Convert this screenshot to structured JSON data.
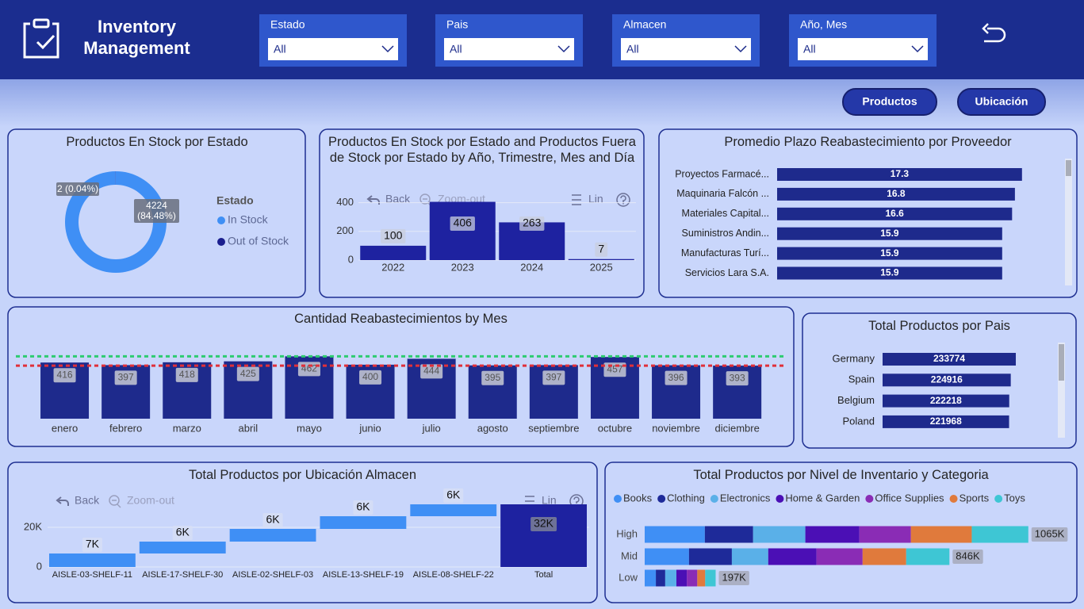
{
  "header": {
    "title": "Inventory Management"
  },
  "filters": [
    {
      "label": "Estado",
      "value": "All"
    },
    {
      "label": "Pais",
      "value": "All"
    },
    {
      "label": "Almacen",
      "value": "All"
    },
    {
      "label": "Año, Mes",
      "value": "All"
    }
  ],
  "buttons": [
    "Productos",
    "Ubicación"
  ],
  "chart_data": [
    {
      "type": "donut",
      "title": "Productos En Stock por Estado",
      "legend_title": "Estado",
      "categories": [
        "In Stock",
        "Out of Stock"
      ],
      "values": [
        4224,
        2
      ],
      "value_labels": [
        "4224 (84.48%)",
        "2 (0.04%)"
      ],
      "colors": [
        "#3f8ff5",
        "#1b1f8f"
      ]
    },
    {
      "type": "bar",
      "title": "Productos En Stock por Estado and Productos Fuera de Stock por Estado by Año, Trimestre, Mes and Día",
      "toolbar": [
        "Back",
        "Zoom-out",
        "Lin"
      ],
      "categories": [
        "2022",
        "2023",
        "2024",
        "2025"
      ],
      "values": [
        100,
        406,
        263,
        7
      ],
      "color": "#1e22a0",
      "ylim": [
        0,
        420
      ],
      "yticks": [
        0,
        200,
        400
      ],
      "grid": true
    },
    {
      "type": "hbar",
      "title": "Promedio Plazo Reabastecimiento por Proveedor",
      "categories": [
        "Proyectos Farmacé...",
        "Maquinaria Falcón ...",
        "Materiales Capital...",
        "Suministros Andin...",
        "Manufacturas Turí...",
        "Servicios Lara S.A."
      ],
      "values": [
        17.3,
        16.8,
        16.6,
        15.9,
        15.9,
        15.9
      ],
      "color": "#1e2a8c",
      "xlim": [
        0,
        20
      ]
    },
    {
      "type": "bar",
      "title": "Cantidad Reabastecimientos by Mes",
      "categories": [
        "enero",
        "febrero",
        "marzo",
        "abril",
        "mayo",
        "junio",
        "julio",
        "agosto",
        "septiembre",
        "octubre",
        "noviembre",
        "diciembre"
      ],
      "values": [
        416,
        397,
        418,
        425,
        462,
        400,
        444,
        395,
        397,
        457,
        396,
        393
      ],
      "color": "#1e2a8c",
      "ylim": [
        0,
        470
      ],
      "reference_lines": [
        {
          "value": 462,
          "color": "#2ecc71"
        },
        {
          "value": 393,
          "color": "#e0303a"
        }
      ]
    },
    {
      "type": "hbar",
      "title": "Total Productos por Pais",
      "categories": [
        "Germany",
        "Spain",
        "Belgium",
        "Poland"
      ],
      "values": [
        233774,
        224916,
        222218,
        221968
      ],
      "color": "#1e2a8c",
      "xlim": [
        0,
        300000
      ]
    },
    {
      "type": "waterfall",
      "title": "Total Productos por Ubicación Almacen",
      "toolbar": [
        "Back",
        "Zoom-out",
        "Lin"
      ],
      "categories": [
        "AISLE-03-SHELF-11",
        "AISLE-17-SHELF-30",
        "AISLE-02-SHELF-03",
        "AISLE-13-SHELF-19",
        "AISLE-08-SHELF-22"
      ],
      "values": [
        6800,
        6000,
        6400,
        6400,
        6000
      ],
      "value_labels": [
        "7K",
        "6K",
        "6K",
        "6K",
        "6K"
      ],
      "total_category": "Total",
      "total": 31600,
      "total_label": "32K",
      "color": "#3f8ff5",
      "total_color": "#1e22a0",
      "ylim": [
        0,
        34000
      ],
      "yticks": [
        0,
        {
          "value": 20000,
          "label": "20K"
        }
      ],
      "grid": true
    },
    {
      "type": "stacked_hbar",
      "title": "Total Productos por Nivel de Inventario y Categoria",
      "categories": [
        "High",
        "Mid",
        "Low"
      ],
      "series": [
        {
          "name": "Books",
          "color": "#3f8ff5",
          "values": [
            167000,
            123000,
            31000
          ]
        },
        {
          "name": "Clothing",
          "color": "#1e2a99",
          "values": [
            134000,
            119000,
            26000
          ]
        },
        {
          "name": "Electronics",
          "color": "#5ab0e8",
          "values": [
            145000,
            101000,
            31000
          ]
        },
        {
          "name": "Home & Garden",
          "color": "#4b0fb5",
          "values": [
            150000,
            134000,
            29000
          ]
        },
        {
          "name": "Office Supplies",
          "color": "#8a2cb5",
          "values": [
            143000,
            128000,
            29000
          ]
        },
        {
          "name": "Sports",
          "color": "#e07a3c",
          "values": [
            169000,
            121000,
            22000
          ]
        },
        {
          "name": "Toys",
          "color": "#3ec6d4",
          "values": [
            157000,
            120000,
            29000
          ]
        }
      ],
      "totals": [
        1065000,
        846000,
        197000
      ],
      "total_labels": [
        "1065K",
        "846K",
        "197K"
      ],
      "xlim": [
        0,
        1180000
      ]
    }
  ]
}
